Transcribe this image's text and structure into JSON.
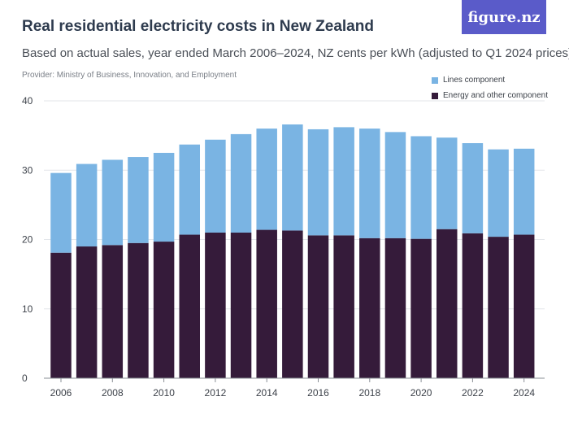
{
  "header": {
    "title": "Real residential electricity costs in New Zealand",
    "subtitle": "Based on actual sales, year ended March 2006–2024, NZ cents per kWh (adjusted to Q1 2024 prices)",
    "provider": "Provider: Ministry of Business, Innovation, and Employment",
    "logo_text": "figure.nz"
  },
  "colors": {
    "lines": "#7ab4e3",
    "energy": "#351b3a",
    "logo_bg": "#5a5bc9"
  },
  "chart_data": {
    "type": "bar",
    "stacked": true,
    "title": "Real residential electricity costs in New Zealand",
    "subtitle": "Based on actual sales, year ended March 2006–2024, NZ cents per kWh (adjusted to Q1 2024 prices)",
    "categories": [
      "2006",
      "2007",
      "2008",
      "2009",
      "2010",
      "2011",
      "2012",
      "2013",
      "2014",
      "2015",
      "2016",
      "2017",
      "2018",
      "2019",
      "2020",
      "2021",
      "2022",
      "2023",
      "2024"
    ],
    "x_tick_labels": [
      "2006",
      "2008",
      "2010",
      "2012",
      "2014",
      "2016",
      "2018",
      "2020",
      "2022",
      "2024"
    ],
    "series": [
      {
        "name": "Energy and other component",
        "color": "#351b3a",
        "values": [
          18.1,
          19.0,
          19.2,
          19.5,
          19.7,
          20.7,
          21.0,
          21.0,
          21.4,
          21.3,
          20.6,
          20.6,
          20.2,
          20.2,
          20.1,
          21.5,
          20.9,
          20.4,
          20.7
        ]
      },
      {
        "name": "Lines component",
        "color": "#7ab4e3",
        "values": [
          11.5,
          11.9,
          12.3,
          12.4,
          12.8,
          13.0,
          13.4,
          14.2,
          14.6,
          15.3,
          15.3,
          15.6,
          15.8,
          15.3,
          14.8,
          13.2,
          13.0,
          12.6,
          12.4
        ]
      }
    ],
    "legend": [
      {
        "label": "Lines component",
        "color": "#7ab4e3"
      },
      {
        "label": "Energy and other component",
        "color": "#351b3a"
      }
    ],
    "legend_position": "top-right",
    "ylim": [
      0,
      40
    ],
    "y_ticks": [
      0,
      10,
      20,
      30,
      40
    ],
    "grid": true,
    "xlabel": "",
    "ylabel": ""
  }
}
